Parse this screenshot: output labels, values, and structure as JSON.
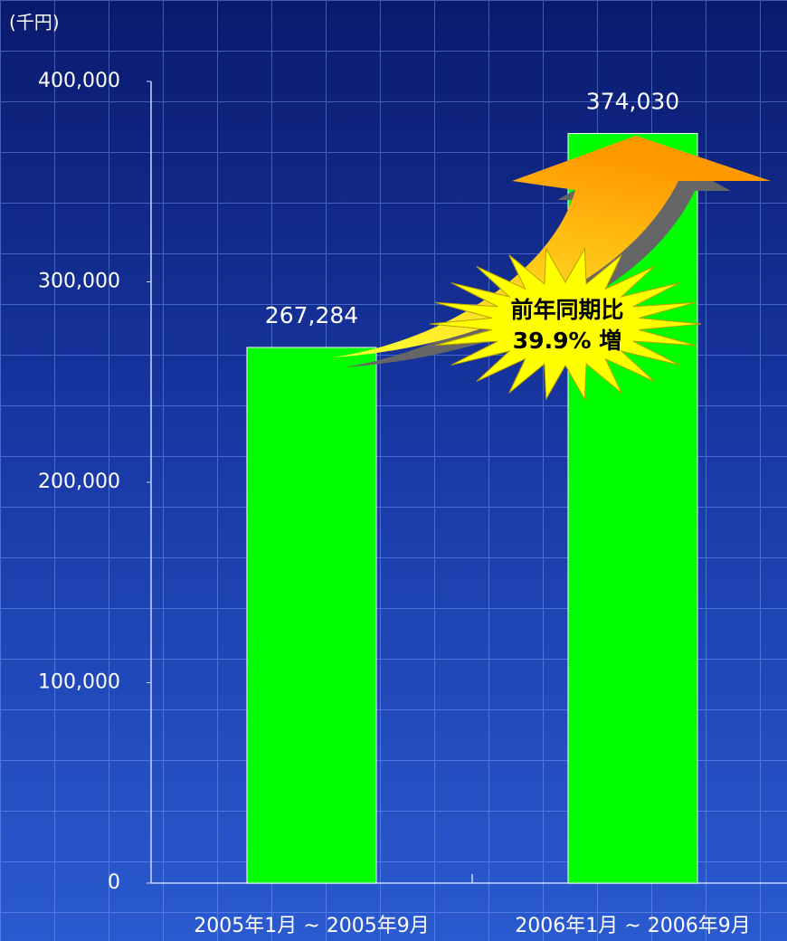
{
  "chart_data": {
    "type": "bar",
    "y_label": "(千円)",
    "categories": [
      "2005年1月 ~ 2005年9月",
      "2006年1月 ~ 2006年9月"
    ],
    "values": [
      267284,
      374030
    ],
    "value_labels": [
      "267,284",
      "374,030"
    ],
    "color": "#00ff00",
    "ylim": [
      0,
      400000
    ],
    "yticks": [
      0,
      {
        "value": 100000,
        "label": "100,000"
      },
      {
        "value": 200000,
        "label": "200,000"
      },
      {
        "value": 300000,
        "label": "300,000"
      },
      {
        "value": 400000,
        "label": "400,000"
      }
    ],
    "annotation": [
      "前年同期比",
      "39.9% 増"
    ]
  }
}
